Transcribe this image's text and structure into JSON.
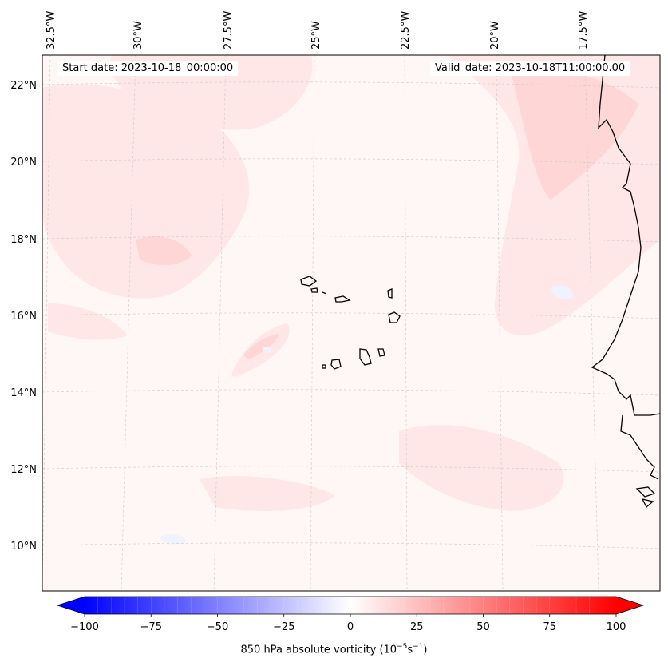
{
  "map": {
    "start_date_text": "Start date: 2023-10-18_00:00:00",
    "valid_date_text": "Valid_date: 2023-10-18T11:00:00.00",
    "lon_labels": [
      "32.5°W",
      "30°W",
      "27.5°W",
      "25°W",
      "22.5°W",
      "20°W",
      "17.5°W"
    ],
    "lat_labels": [
      "22°N",
      "20°N",
      "18°N",
      "16°N",
      "14°N",
      "12°N",
      "10°N"
    ],
    "field_name": "850 hPa absolute vorticity",
    "colorbar": {
      "label_main": "850 hPa absolute vorticity (10",
      "label_exp1": "−5",
      "label_mid": "s",
      "label_exp2": "−1",
      "label_end": ")",
      "ticks": [
        "−100",
        "−75",
        "−50",
        "−25",
        "0",
        "25",
        "50",
        "75",
        "100"
      ],
      "range": [
        -100,
        100
      ],
      "extend": "both",
      "colors": {
        "min": "#0000ff",
        "zero": "#ffffff",
        "max": "#ff0000"
      }
    },
    "colors": {
      "background_field": "#fff6f6",
      "weak_positive": "#ffe7e7",
      "moderate_positive": "#ffd6d6",
      "weak_negative": "#f0f3ff",
      "coastline": "#000000",
      "gridline": "#c8c8c8"
    },
    "features": [
      "cape-verde-islands",
      "west-african-coastline"
    ]
  }
}
